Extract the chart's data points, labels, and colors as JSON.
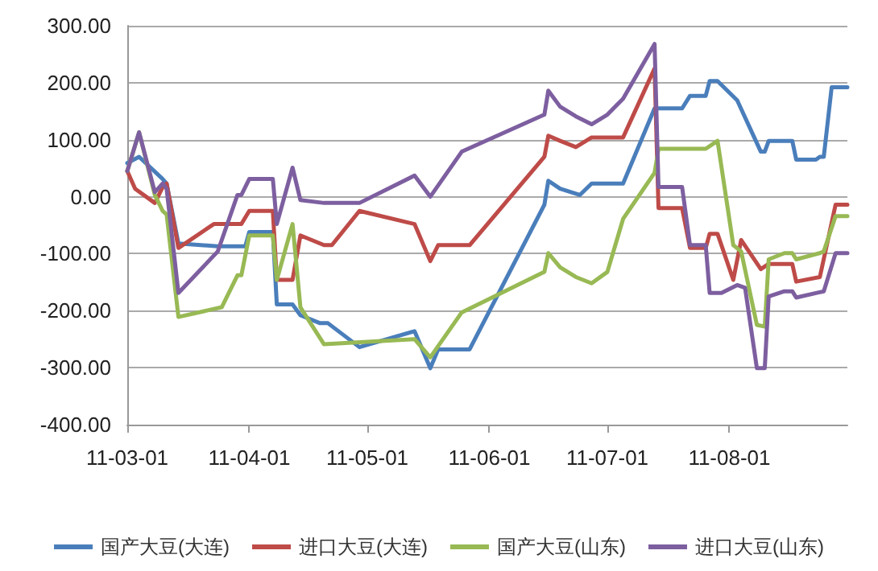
{
  "chart_data": {
    "type": "line",
    "xlim": [
      "--03-01",
      "--08-31"
    ],
    "xticks": [
      {
        "value": "--03-01",
        "label": "11-03-01"
      },
      {
        "value": "--04-01",
        "label": "11-04-01"
      },
      {
        "value": "--05-01",
        "label": "11-05-01"
      },
      {
        "value": "--06-01",
        "label": "11-06-01"
      },
      {
        "value": "--07-01",
        "label": "11-07-01"
      },
      {
        "value": "--08-01",
        "label": "11-08-01"
      }
    ],
    "ylim": [
      -400,
      300
    ],
    "yticks": [
      {
        "value": -400,
        "label": "-400.00"
      },
      {
        "value": -300,
        "label": "-300.00"
      },
      {
        "value": -200,
        "label": "-200.00"
      },
      {
        "value": -100,
        "label": "-100.00"
      },
      {
        "value": 0,
        "label": "0.00"
      },
      {
        "value": 100,
        "label": "100.00"
      },
      {
        "value": 200,
        "label": "200.00"
      },
      {
        "value": 300,
        "label": "300.00"
      }
    ],
    "grid": "y",
    "legend": "bottom",
    "marker": "none",
    "line_style": "solid",
    "series": [
      {
        "name": "国产大豆(大连)",
        "color": "#4a7ebb",
        "x": [
          "--03-01",
          "--03-04",
          "--03-10",
          "--03-11",
          "--03-14",
          "--03-24",
          "--03-31",
          "--04-01",
          "--04-07",
          "--04-08",
          "--04-12",
          "--04-14",
          "--04-19",
          "--04-21",
          "--04-29",
          "--05-13",
          "--05-17",
          "--05-19",
          "--05-27",
          "--06-15",
          "--06-16",
          "--06-19",
          "--06-24",
          "--06-27",
          "--07-05",
          "--07-13",
          "--07-20",
          "--07-22",
          "--07-26",
          "--07-27",
          "--07-29",
          "--08-03",
          "--08-09",
          "--08-10",
          "--08-11",
          "--08-17",
          "--08-18",
          "--08-23",
          "--08-24",
          "--08-25",
          "--08-27",
          "--08-31"
        ],
        "values": [
          59,
          70,
          31,
          23,
          -82,
          -87,
          -87,
          -62,
          -62,
          -189,
          -189,
          -208,
          -222,
          -222,
          -264,
          -236,
          -301,
          -268,
          -268,
          -14,
          28,
          14,
          3,
          23,
          23,
          155,
          155,
          177,
          177,
          203,
          203,
          169,
          79,
          79,
          98,
          98,
          65,
          65,
          70,
          70,
          192,
          192
        ]
      },
      {
        "name": "进口大豆(大连)",
        "color": "#be4b48",
        "x": [
          "--03-01",
          "--03-03",
          "--03-08",
          "--03-10",
          "--03-11",
          "--03-14",
          "--03-23",
          "--03-30",
          "--04-01",
          "--04-07",
          "--04-08",
          "--04-12",
          "--04-14",
          "--04-20",
          "--04-22",
          "--04-29",
          "--05-13",
          "--05-17",
          "--05-19",
          "--05-27",
          "--06-15",
          "--06-16",
          "--06-19",
          "--06-23",
          "--06-27",
          "--07-05",
          "--07-13",
          "--07-14",
          "--07-20",
          "--07-22",
          "--07-26",
          "--07-27",
          "--07-29",
          "--08-02",
          "--08-04",
          "--08-09",
          "--08-11",
          "--08-17",
          "--08-18",
          "--08-24",
          "--08-28",
          "--08-31"
        ],
        "values": [
          45,
          14,
          -11,
          17,
          23,
          -90,
          -48,
          -48,
          -25,
          -25,
          -146,
          -146,
          -68,
          -85,
          -85,
          -25,
          -48,
          -113,
          -85,
          -85,
          70,
          107,
          98,
          87,
          104,
          104,
          225,
          -20,
          -20,
          -90,
          -90,
          -65,
          -65,
          -146,
          -76,
          -127,
          -118,
          -118,
          -149,
          -141,
          -14,
          -14
        ]
      },
      {
        "name": "国产大豆(山东)",
        "color": "#98b954",
        "x": [
          "--03-01",
          "--03-04",
          "--03-08",
          "--03-10",
          "--03-11",
          "--03-14",
          "--03-25",
          "--03-29",
          "--03-30",
          "--04-01",
          "--04-07",
          "--04-08",
          "--04-12",
          "--04-14",
          "--04-20",
          "--05-13",
          "--05-17",
          "--05-25",
          "--06-15",
          "--06-16",
          "--06-19",
          "--06-23",
          "--06-27",
          "--07-01",
          "--07-05",
          "--07-13",
          "--07-14",
          "--07-26",
          "--07-29",
          "--08-02",
          "--08-04",
          "--08-08",
          "--08-10",
          "--08-11",
          "--08-15",
          "--08-17",
          "--08-18",
          "--08-24",
          "--08-25",
          "--08-28",
          "--08-31"
        ],
        "values": [
          45,
          113,
          3,
          -25,
          -31,
          -211,
          -194,
          -138,
          -138,
          -68,
          -68,
          -146,
          -48,
          -194,
          -259,
          -250,
          -282,
          -203,
          -132,
          -99,
          -124,
          -141,
          -152,
          -132,
          -39,
          42,
          84,
          84,
          98,
          -85,
          -96,
          -225,
          -228,
          -110,
          -99,
          -99,
          -110,
          -99,
          -96,
          -34,
          -34
        ]
      },
      {
        "name": "进口大豆(山东)",
        "color": "#7d5fa0",
        "x": [
          "--03-01",
          "--03-04",
          "--03-08",
          "--03-10",
          "--03-11",
          "--03-14",
          "--03-24",
          "--03-29",
          "--03-30",
          "--04-01",
          "--04-07",
          "--04-08",
          "--04-12",
          "--04-14",
          "--04-20",
          "--04-29",
          "--05-13",
          "--05-17",
          "--05-25",
          "--06-15",
          "--06-16",
          "--06-19",
          "--06-23",
          "--06-27",
          "--07-01",
          "--07-05",
          "--07-13",
          "--07-14",
          "--07-20",
          "--07-22",
          "--07-26",
          "--07-27",
          "--07-30",
          "--08-03",
          "--08-05",
          "--08-08",
          "--08-10",
          "--08-11",
          "--08-15",
          "--08-17",
          "--08-18",
          "--08-25",
          "--08-28",
          "--08-31"
        ],
        "values": [
          45,
          113,
          8,
          23,
          14,
          -169,
          -96,
          3,
          3,
          31,
          31,
          -48,
          51,
          -6,
          -11,
          -11,
          37,
          0,
          79,
          144,
          186,
          158,
          141,
          127,
          144,
          172,
          268,
          17,
          17,
          -85,
          -85,
          -169,
          -169,
          -155,
          -160,
          -301,
          -301,
          -175,
          -166,
          -166,
          -177,
          -166,
          -99,
          -99
        ]
      }
    ]
  }
}
